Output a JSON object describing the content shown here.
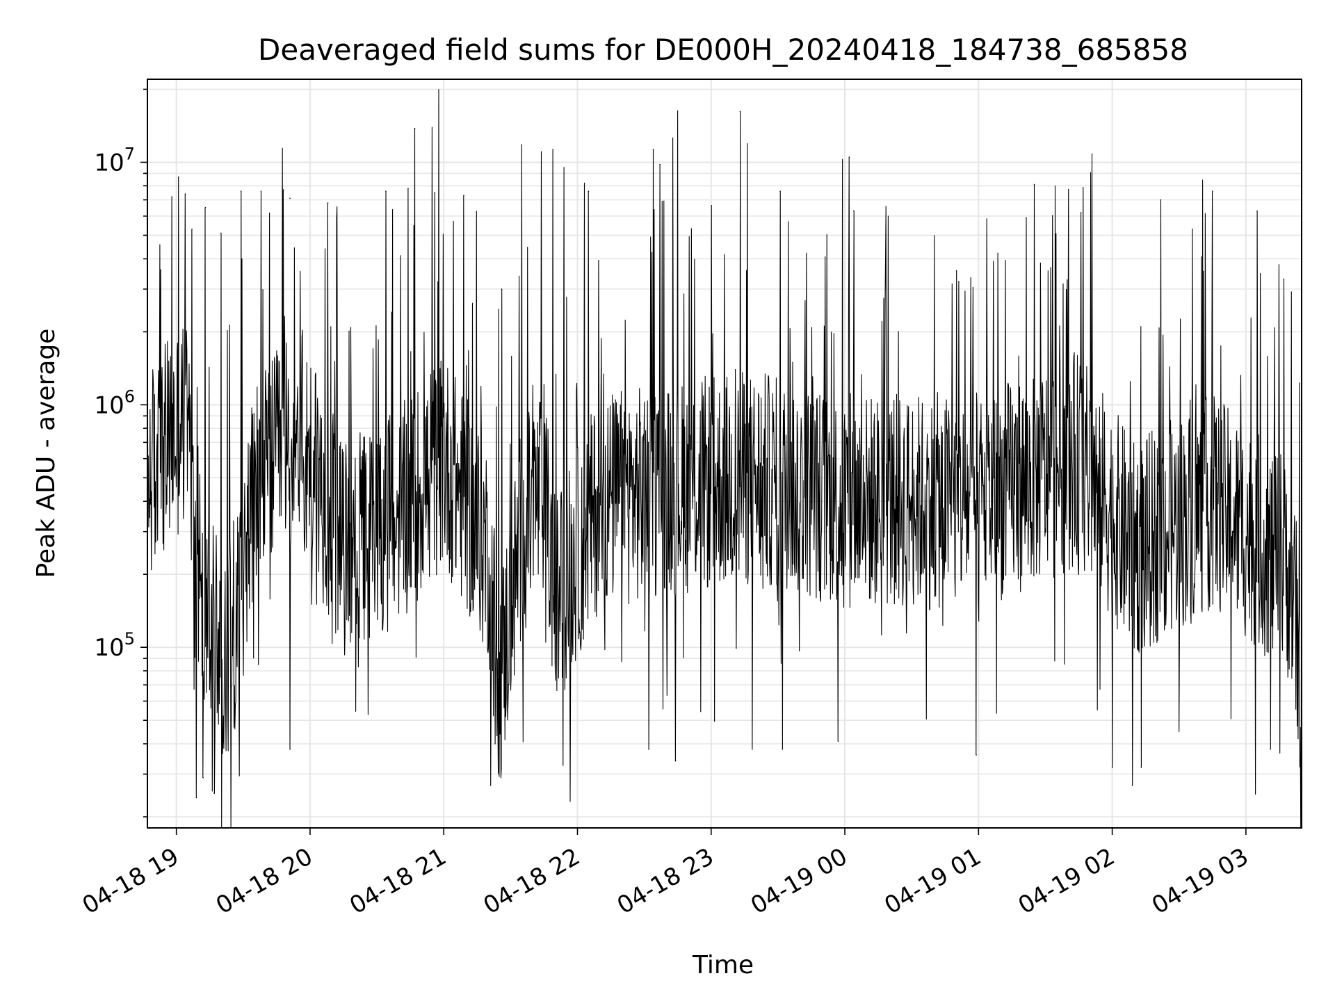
{
  "chart_data": {
    "type": "line",
    "title": "Deaveraged field sums for DE000H_20240418_184738_685858",
    "xlabel": "Time",
    "ylabel": "Peak ADU - average",
    "x_start": "2024-04-18 18:47",
    "x_end": "2024-04-19 03:25",
    "xlim": [
      "2024-04-18 18:47",
      "2024-04-19 03:25"
    ],
    "x_ticks": [
      {
        "time": "2024-04-18 19:00",
        "label": "04-18 19"
      },
      {
        "time": "2024-04-18 20:00",
        "label": "04-18 20"
      },
      {
        "time": "2024-04-18 21:00",
        "label": "04-18 21"
      },
      {
        "time": "2024-04-18 22:00",
        "label": "04-18 22"
      },
      {
        "time": "2024-04-18 23:00",
        "label": "04-18 23"
      },
      {
        "time": "2024-04-19 00:00",
        "label": "04-19 00"
      },
      {
        "time": "2024-04-19 01:00",
        "label": "04-19 01"
      },
      {
        "time": "2024-04-19 02:00",
        "label": "04-19 02"
      },
      {
        "time": "2024-04-19 03:00",
        "label": "04-19 03"
      }
    ],
    "y_scale": "log",
    "ylim": [
      18000,
      22000000
    ],
    "y_ticks": [
      {
        "value": 100000,
        "base": "10",
        "exp": "5"
      },
      {
        "value": 1000000,
        "base": "10",
        "exp": "6"
      },
      {
        "value": 10000000,
        "base": "10",
        "exp": "7"
      }
    ],
    "grid": true,
    "baseline_segments": [
      {
        "time": "2024-04-18 18:47",
        "value": 500000
      },
      {
        "time": "2024-04-18 19:05",
        "value": 900000
      },
      {
        "time": "2024-04-18 19:10",
        "value": 130000
      },
      {
        "time": "2024-04-18 19:25",
        "value": 100000
      },
      {
        "time": "2024-04-18 19:35",
        "value": 450000
      },
      {
        "time": "2024-04-18 19:55",
        "value": 800000
      },
      {
        "time": "2024-04-18 20:15",
        "value": 250000
      },
      {
        "time": "2024-04-18 20:40",
        "value": 350000
      },
      {
        "time": "2024-04-18 21:00",
        "value": 600000
      },
      {
        "time": "2024-04-18 21:20",
        "value": 250000
      },
      {
        "time": "2024-04-18 21:25",
        "value": 70000
      },
      {
        "time": "2024-04-18 21:35",
        "value": 300000
      },
      {
        "time": "2024-04-18 21:45",
        "value": 450000
      },
      {
        "time": "2024-04-18 21:50",
        "value": 150000
      },
      {
        "time": "2024-04-18 22:10",
        "value": 400000
      },
      {
        "time": "2024-04-18 22:40",
        "value": 450000
      },
      {
        "time": "2024-04-18 23:20",
        "value": 500000
      },
      {
        "time": "2024-04-19 00:00",
        "value": 400000
      },
      {
        "time": "2024-04-19 01:00",
        "value": 400000
      },
      {
        "time": "2024-04-19 01:45",
        "value": 600000
      },
      {
        "time": "2024-04-19 02:10",
        "value": 250000
      },
      {
        "time": "2024-04-19 02:45",
        "value": 400000
      },
      {
        "time": "2024-04-19 03:10",
        "value": 250000
      },
      {
        "time": "2024-04-19 03:20",
        "value": 200000
      },
      {
        "time": "2024-04-19 03:25",
        "value": 75000
      }
    ],
    "peaks": [
      {
        "time": "2024-04-18 18:47",
        "value": 2200000
      },
      {
        "time": "2024-04-18 18:53",
        "value": 3600000
      },
      {
        "time": "2024-04-18 18:58",
        "value": 7200000
      },
      {
        "time": "2024-04-18 19:01",
        "value": 8700000
      },
      {
        "time": "2024-04-18 19:04",
        "value": 7400000
      },
      {
        "time": "2024-04-18 19:07",
        "value": 5300000
      },
      {
        "time": "2024-04-18 19:13",
        "value": 6500000
      },
      {
        "time": "2024-04-18 19:20",
        "value": 5100000
      },
      {
        "time": "2024-04-18 19:29",
        "value": 7600000
      },
      {
        "time": "2024-04-18 19:38",
        "value": 7600000
      },
      {
        "time": "2024-04-18 19:48",
        "value": 7700000
      },
      {
        "time": "2024-04-18 19:51",
        "value": 7100000
      },
      {
        "time": "2024-04-18 20:08",
        "value": 6800000
      },
      {
        "time": "2024-04-18 20:12",
        "value": 5900000
      },
      {
        "time": "2024-04-18 20:34",
        "value": 7600000
      },
      {
        "time": "2024-04-18 20:44",
        "value": 7800000
      },
      {
        "time": "2024-04-18 20:47",
        "value": 13800000
      },
      {
        "time": "2024-04-18 20:56",
        "value": 7500000
      },
      {
        "time": "2024-04-18 21:09",
        "value": 7300000
      },
      {
        "time": "2024-04-18 21:26",
        "value": 3000000
      },
      {
        "time": "2024-04-18 21:35",
        "value": 11800000
      },
      {
        "time": "2024-04-18 21:49",
        "value": 11300000
      },
      {
        "time": "2024-04-18 21:54",
        "value": 9500000
      },
      {
        "time": "2024-04-18 22:05",
        "value": 7600000
      },
      {
        "time": "2024-04-18 22:34",
        "value": 11300000
      },
      {
        "time": "2024-04-18 22:37",
        "value": 9800000
      },
      {
        "time": "2024-04-18 23:13",
        "value": 16200000
      },
      {
        "time": "2024-04-18 23:31",
        "value": 7600000
      },
      {
        "time": "2024-04-19 00:02",
        "value": 10500000
      },
      {
        "time": "2024-04-19 00:04",
        "value": 6300000
      },
      {
        "time": "2024-04-19 00:24",
        "value": 2000000
      },
      {
        "time": "2024-04-19 01:25",
        "value": 8100000
      },
      {
        "time": "2024-04-19 01:46",
        "value": 6200000
      },
      {
        "time": "2024-04-19 01:51",
        "value": 10800000
      },
      {
        "time": "2024-04-19 02:36",
        "value": 5300000
      },
      {
        "time": "2024-04-19 02:45",
        "value": 7600000
      },
      {
        "time": "2024-04-19 03:05",
        "value": 6300000
      },
      {
        "time": "2024-04-19 03:17",
        "value": 3300000
      }
    ],
    "troughs": [
      {
        "time": "2024-04-18 19:09",
        "value": 24000
      },
      {
        "time": "2024-04-18 19:12",
        "value": 29000
      },
      {
        "time": "2024-04-18 19:17",
        "value": 25000
      },
      {
        "time": "2024-04-18 19:51",
        "value": 38000
      },
      {
        "time": "2024-04-18 21:21",
        "value": 27000
      },
      {
        "time": "2024-04-18 21:23",
        "value": 40000
      },
      {
        "time": "2024-04-18 22:32",
        "value": 38000
      },
      {
        "time": "2024-04-18 22:44",
        "value": 34000
      },
      {
        "time": "2024-04-18 23:32",
        "value": 38000
      },
      {
        "time": "2024-04-18 23:57",
        "value": 41000
      },
      {
        "time": "2024-04-19 00:59",
        "value": 36000
      },
      {
        "time": "2024-04-19 02:00",
        "value": 32000
      },
      {
        "time": "2024-04-19 02:09",
        "value": 27000
      },
      {
        "time": "2024-04-19 02:13",
        "value": 32000
      },
      {
        "time": "2024-04-19 03:11",
        "value": 38000
      }
    ]
  }
}
